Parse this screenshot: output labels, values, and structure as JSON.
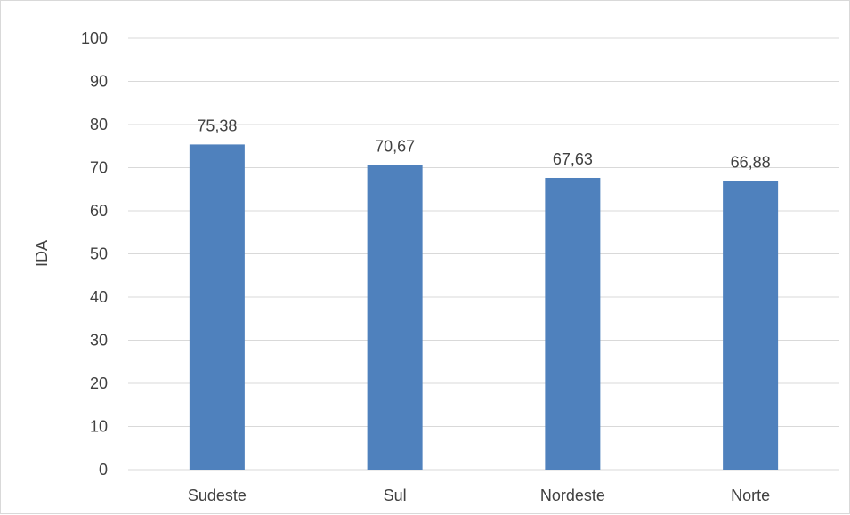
{
  "chart_data": {
    "type": "bar",
    "categories": [
      "Sudeste",
      "Sul",
      "Nordeste",
      "Norte"
    ],
    "values": [
      75.38,
      70.67,
      67.63,
      66.88
    ],
    "data_labels": [
      "75,38",
      "70,67",
      "67,63",
      "66,88"
    ],
    "xlabel": "",
    "ylabel": "IDA",
    "ylim": [
      0,
      100
    ],
    "yticks": [
      0,
      10,
      20,
      30,
      40,
      50,
      60,
      70,
      80,
      90,
      100
    ],
    "grid": true,
    "legend": "none",
    "colors": {
      "bar": "#4f81bd",
      "grid": "#d9d9d9",
      "text": "#404040",
      "border": "#d9d9d9"
    }
  }
}
